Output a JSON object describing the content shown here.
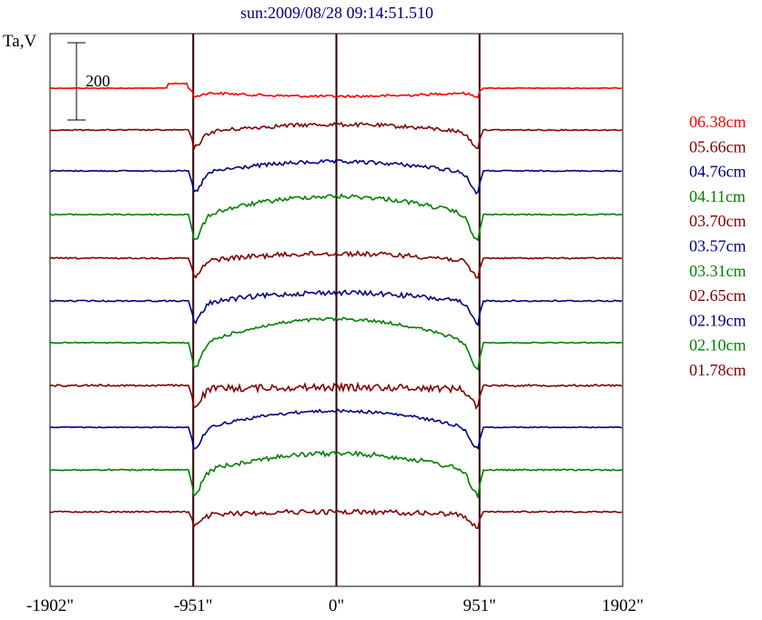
{
  "chart_data": {
    "type": "line",
    "title": "sun:2009/08/28 09:14:51.510",
    "ylabel": "Ta,V",
    "scale_bar_label": "200",
    "scale_bar_value": 200,
    "xlim": [
      -1902,
      1902
    ],
    "x_ticks": [
      {
        "value": -1902,
        "label": "-1902\""
      },
      {
        "value": -951,
        "label": "-951\""
      },
      {
        "value": 0,
        "label": "0\""
      },
      {
        "value": 951,
        "label": "951\""
      },
      {
        "value": 1902,
        "label": "1902\""
      }
    ],
    "limb_markers": [
      -951,
      0,
      951
    ],
    "legend_position": "right",
    "series": [
      {
        "name": "06.38cm",
        "color": "#ff0000"
      },
      {
        "name": "05.66cm",
        "color": "#800000"
      },
      {
        "name": "04.76cm",
        "color": "#000080"
      },
      {
        "name": "04.11cm",
        "color": "#008000"
      },
      {
        "name": "03.70cm",
        "color": "#800000"
      },
      {
        "name": "03.57cm",
        "color": "#000080"
      },
      {
        "name": "03.31cm",
        "color": "#008000"
      },
      {
        "name": "02.65cm",
        "color": "#800000"
      },
      {
        "name": "02.19cm",
        "color": "#000080"
      },
      {
        "name": "02.10cm",
        "color": "#008000"
      },
      {
        "name": "01.78cm",
        "color": "#800000"
      }
    ]
  }
}
